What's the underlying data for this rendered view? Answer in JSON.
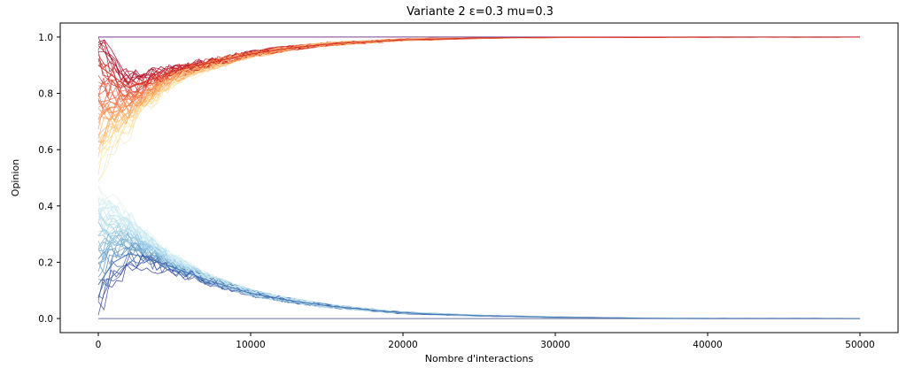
{
  "chart_data": {
    "type": "line",
    "title": "Variante 2 ε=0.3 mu=0.3",
    "xlabel": "Nombre d'interactions",
    "ylabel": "Opinion",
    "xlim": [
      -2500,
      52500
    ],
    "ylim": [
      -0.05,
      1.05
    ],
    "xticks": [
      0,
      10000,
      20000,
      30000,
      40000,
      50000
    ],
    "yticks": [
      0.0,
      0.2,
      0.4,
      0.6,
      0.8,
      1.0
    ],
    "xtick_labels": [
      "0",
      "10000",
      "20000",
      "30000",
      "40000",
      "50000"
    ],
    "ytick_labels": [
      "0.0",
      "0.2",
      "0.4",
      "0.6",
      "0.8",
      "1.0"
    ],
    "grid": false,
    "colormap": "RdYlBu (colored by initial opinion)",
    "colors": [
      "#a50026",
      "#d73027",
      "#f46d43",
      "#fdae61",
      "#fee090",
      "#e0f3f8",
      "#abd9e9",
      "#74add1",
      "#4575b4",
      "#313695"
    ],
    "series": [
      {
        "group": "upper",
        "x": [
          0,
          1000,
          2000,
          3000,
          5000,
          7500,
          10000,
          12500,
          15000,
          20000,
          25000,
          30000,
          40000,
          50000
        ],
        "y": [
          0.9,
          0.86,
          0.82,
          0.84,
          0.88,
          0.91,
          0.94,
          0.96,
          0.975,
          0.99,
          0.997,
          0.999,
          1.0,
          1.0
        ]
      },
      {
        "group": "lower",
        "x": [
          0,
          1000,
          2000,
          3000,
          5000,
          7500,
          10000,
          12500,
          15000,
          20000,
          25000,
          30000,
          36000,
          40000,
          50000
        ],
        "y": [
          0.12,
          0.2,
          0.23,
          0.22,
          0.18,
          0.13,
          0.09,
          0.065,
          0.045,
          0.02,
          0.01,
          0.005,
          0.001,
          0.0,
          0.0
        ]
      },
      {
        "group": "stubborn-high",
        "x": [
          0,
          50000
        ],
        "y": [
          1.0,
          1.0
        ]
      },
      {
        "group": "stubborn-low",
        "x": [
          0,
          50000
        ],
        "y": [
          0.0,
          0.0
        ]
      }
    ]
  }
}
